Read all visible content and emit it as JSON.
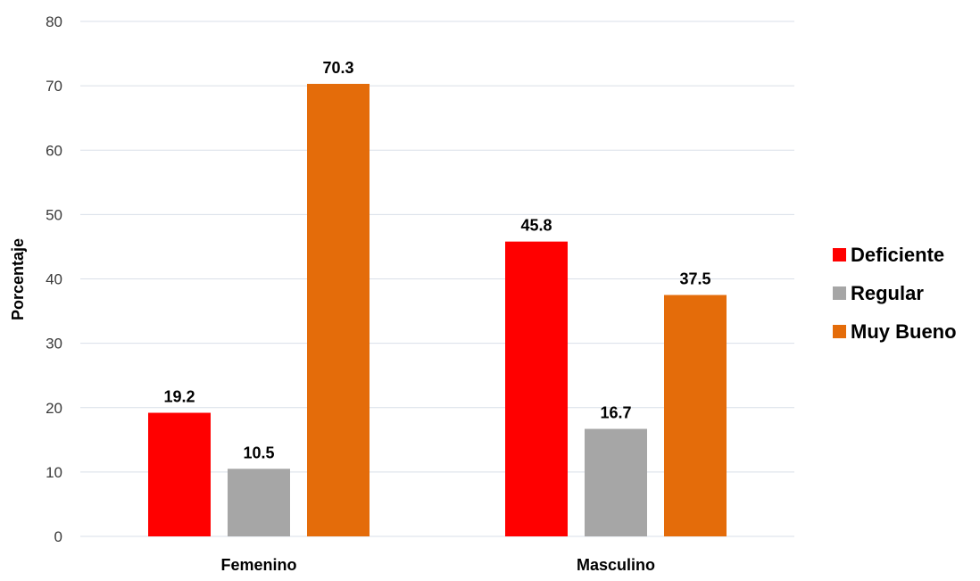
{
  "chart_data": {
    "type": "bar",
    "categories": [
      "Femenino",
      "Masculino"
    ],
    "series": [
      {
        "name": "Deficiente",
        "values": [
          19.2,
          45.8
        ],
        "color": "#ff0000"
      },
      {
        "name": "Regular",
        "values": [
          10.5,
          16.7
        ],
        "color": "#a6a6a6"
      },
      {
        "name": "Muy Bueno",
        "values": [
          70.3,
          37.5
        ],
        "color": "#e46c0a"
      }
    ],
    "title": "",
    "xlabel": "",
    "ylabel": "Porcentaje",
    "ylim": [
      0,
      80
    ],
    "yticks": [
      0,
      10,
      20,
      30,
      40,
      50,
      60,
      70,
      80
    ],
    "data_labels": true,
    "grid": true,
    "legend_position": "right"
  }
}
